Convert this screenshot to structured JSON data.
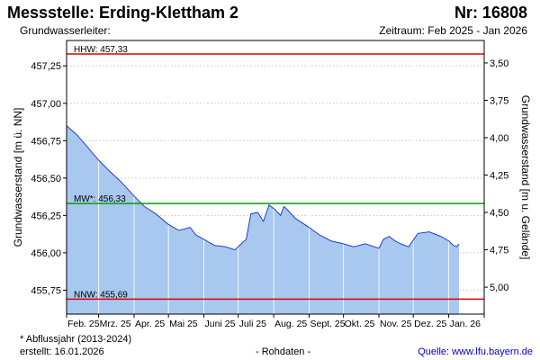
{
  "header": {
    "title": "Messstelle: Erding-Klettham 2",
    "nr": "Nr: 16808",
    "grundwasserleiter": "Grundwasserleiter:",
    "zeitraum": "Zeitraum: Feb 2025 - Jan 2026"
  },
  "footer": {
    "footnote": "* Abflussjahr (2013-2024)",
    "erstellt": "erstellt:  16.01.2026",
    "rohdaten": "- Rohdaten -",
    "quelle": "Quelle:  www.lfu.bayern.de"
  },
  "colors": {
    "fill": "#a8c8f0",
    "line": "#1f3fcf",
    "hhw": "#e00000",
    "nnw": "#e00000",
    "mw": "#00a000",
    "grid": "#d0d0d0"
  },
  "chart_data": {
    "type": "area",
    "ylabel": "Grundwasserstand [m ü. NN]",
    "y2label": "Grundwasserstand [m u. Gelände]",
    "ylim": [
      455.59,
      457.42
    ],
    "yticks": [
      "457,25",
      "457,00",
      "456,75",
      "456,50",
      "456,25",
      "456,00",
      "455,75"
    ],
    "ytick_values": [
      457.25,
      457.0,
      456.75,
      456.5,
      456.25,
      456.0,
      455.75
    ],
    "y2ticks": [
      "3,50",
      "3,75",
      "4,00",
      "4,25",
      "4,50",
      "4,75",
      "5,00"
    ],
    "y2tick_values": [
      457.27,
      457.02,
      456.77,
      456.52,
      456.27,
      456.02,
      455.77
    ],
    "x_ticks": [
      "Feb. 25",
      "Mrz. 25",
      "Apr. 25",
      "Mai 25",
      "Juni 25",
      "Juli 25",
      "Aug. 25",
      "Sept. 25",
      "Okt. 25",
      "Nov. 25",
      "Dez. 25",
      "Jan. 26"
    ],
    "x_range": [
      "2025-02-01",
      "2026-02-01"
    ],
    "ref_lines": [
      {
        "label": "HHW: 457,33",
        "value": 457.33,
        "color": "hhw"
      },
      {
        "label": "MW*: 456,33",
        "value": 456.33,
        "color": "mw"
      },
      {
        "label": "NNW: 455,69",
        "value": 455.69,
        "color": "nnw"
      }
    ],
    "series": [
      {
        "x": [
          "2025-02-01",
          "2025-02-10",
          "2025-02-20",
          "2025-03-01",
          "2025-03-10",
          "2025-03-20",
          "2025-04-01",
          "2025-04-10",
          "2025-04-20",
          "2025-05-01",
          "2025-05-10",
          "2025-05-20",
          "2025-05-25",
          "2025-06-01",
          "2025-06-10",
          "2025-06-20",
          "2025-06-28",
          "2025-07-05",
          "2025-07-08",
          "2025-07-12",
          "2025-07-18",
          "2025-07-23",
          "2025-07-28",
          "2025-08-02",
          "2025-08-07",
          "2025-08-10",
          "2025-08-14",
          "2025-08-20",
          "2025-09-01",
          "2025-09-10",
          "2025-09-20",
          "2025-10-01",
          "2025-10-10",
          "2025-10-20",
          "2025-10-28",
          "2025-11-01",
          "2025-11-05",
          "2025-11-10",
          "2025-11-15",
          "2025-11-20",
          "2025-11-27",
          "2025-12-05",
          "2025-12-15",
          "2025-12-25",
          "2026-01-01",
          "2026-01-05",
          "2026-01-08",
          "2026-01-10"
        ],
        "values": [
          456.85,
          456.79,
          456.7,
          456.62,
          456.55,
          456.48,
          456.38,
          456.31,
          456.26,
          456.19,
          456.15,
          456.17,
          456.12,
          456.09,
          456.05,
          456.04,
          456.02,
          456.07,
          456.09,
          456.26,
          456.27,
          456.21,
          456.32,
          456.29,
          456.25,
          456.31,
          456.28,
          456.23,
          456.17,
          456.12,
          456.08,
          456.06,
          456.04,
          456.06,
          456.04,
          456.03,
          456.09,
          456.11,
          456.08,
          456.06,
          456.04,
          456.13,
          456.14,
          456.11,
          456.08,
          456.05,
          456.04,
          456.06
        ]
      }
    ]
  }
}
